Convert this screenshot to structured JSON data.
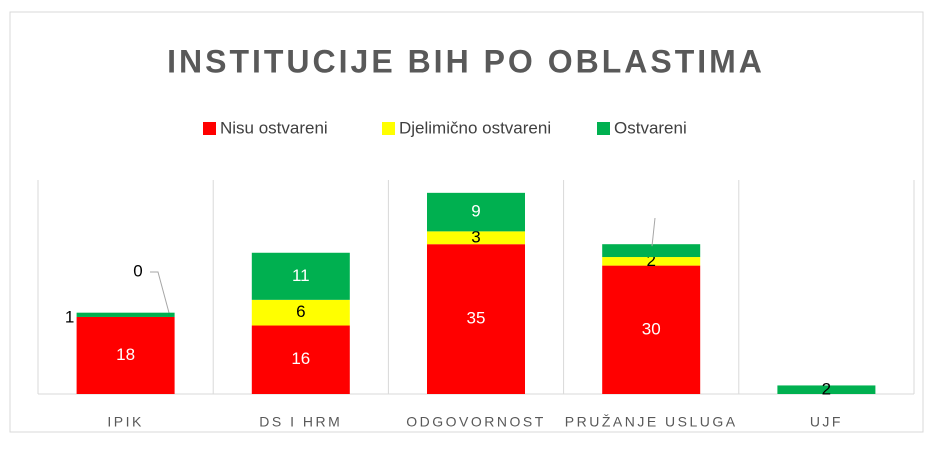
{
  "chart_data": {
    "type": "stacked-bar",
    "title": "INSTITUCIJE BIH PO OBLASTIMA",
    "categories": [
      "IPIK",
      "DS I HRM",
      "ODGOVORNOST",
      "PRUŽANJE USLUGA",
      "UJF"
    ],
    "series": [
      {
        "name": "Nisu ostvareni",
        "color": "#ff0000",
        "values": [
          18,
          16,
          35,
          30,
          null
        ]
      },
      {
        "name": "Djelimično ostvareni",
        "color": "#ffff00",
        "values": [
          0,
          6,
          3,
          2,
          null
        ]
      },
      {
        "name": "Ostvareni",
        "color": "#00b050",
        "values": [
          1,
          11,
          9,
          3,
          2
        ]
      }
    ],
    "legend": "top"
  }
}
